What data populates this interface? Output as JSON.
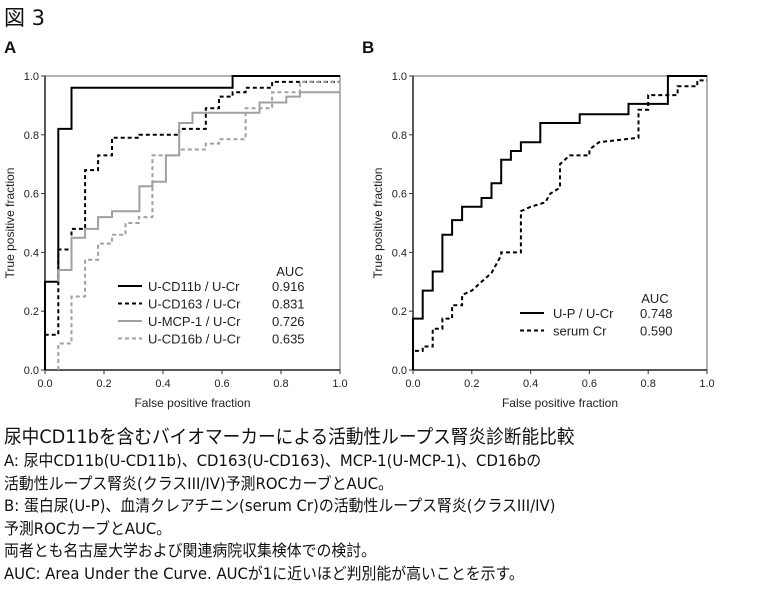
{
  "figure_label": "図 3",
  "chart_data": [
    {
      "panel": "A",
      "type": "line",
      "xlabel": "False positive fraction",
      "ylabel": "True positive fraction",
      "xlim": [
        0,
        1
      ],
      "ylim": [
        0,
        1
      ],
      "xticks": [
        "0.0",
        "0.2",
        "0.4",
        "0.6",
        "0.8",
        "1.0"
      ],
      "yticks": [
        "0.0",
        "0.2",
        "0.4",
        "0.6",
        "0.8",
        "1.0"
      ],
      "legend_title": "AUC",
      "legend_position": "bottom-right",
      "series": [
        {
          "name": "U-CD11b / U-Cr",
          "auc": "0.916",
          "color": "#000000",
          "dash": false,
          "points": [
            [
              0,
              0
            ],
            [
              0,
              0.3
            ],
            [
              0.045,
              0.3
            ],
            [
              0.045,
              0.82
            ],
            [
              0.09,
              0.82
            ],
            [
              0.09,
              0.96
            ],
            [
              0.636,
              0.96
            ],
            [
              0.636,
              1
            ],
            [
              1,
              1
            ]
          ]
        },
        {
          "name": "U-CD163 / U-Cr",
          "auc": "0.831",
          "color": "#000000",
          "dash": true,
          "points": [
            [
              0,
              0
            ],
            [
              0,
              0.12
            ],
            [
              0.045,
              0.12
            ],
            [
              0.045,
              0.41
            ],
            [
              0.09,
              0.41
            ],
            [
              0.09,
              0.48
            ],
            [
              0.136,
              0.48
            ],
            [
              0.136,
              0.68
            ],
            [
              0.18,
              0.68
            ],
            [
              0.18,
              0.73
            ],
            [
              0.227,
              0.73
            ],
            [
              0.227,
              0.79
            ],
            [
              0.32,
              0.79
            ],
            [
              0.32,
              0.8
            ],
            [
              0.455,
              0.8
            ],
            [
              0.455,
              0.82
            ],
            [
              0.545,
              0.82
            ],
            [
              0.545,
              0.89
            ],
            [
              0.59,
              0.89
            ],
            [
              0.59,
              0.93
            ],
            [
              0.636,
              0.93
            ],
            [
              0.636,
              0.945
            ],
            [
              0.68,
              0.945
            ],
            [
              0.68,
              0.96
            ],
            [
              0.77,
              0.96
            ],
            [
              0.77,
              0.98
            ],
            [
              1,
              0.98
            ]
          ]
        },
        {
          "name": "U-MCP-1 / U-Cr",
          "auc": "0.726",
          "color": "#a0a0a0",
          "dash": false,
          "points": [
            [
              0.045,
              0.3
            ],
            [
              0.045,
              0.34
            ],
            [
              0.09,
              0.34
            ],
            [
              0.09,
              0.45
            ],
            [
              0.136,
              0.45
            ],
            [
              0.136,
              0.48
            ],
            [
              0.18,
              0.48
            ],
            [
              0.18,
              0.52
            ],
            [
              0.227,
              0.52
            ],
            [
              0.227,
              0.54
            ],
            [
              0.32,
              0.54
            ],
            [
              0.32,
              0.625
            ],
            [
              0.364,
              0.625
            ],
            [
              0.364,
              0.64
            ],
            [
              0.41,
              0.64
            ],
            [
              0.41,
              0.73
            ],
            [
              0.455,
              0.73
            ],
            [
              0.455,
              0.84
            ],
            [
              0.5,
              0.84
            ],
            [
              0.5,
              0.875
            ],
            [
              0.727,
              0.875
            ],
            [
              0.727,
              0.91
            ],
            [
              0.818,
              0.91
            ],
            [
              0.818,
              0.93
            ],
            [
              0.864,
              0.93
            ],
            [
              0.864,
              0.945
            ],
            [
              1,
              0.945
            ]
          ]
        },
        {
          "name": "U-CD16b / U-Cr",
          "auc": "0.635",
          "color": "#a0a0a0",
          "dash": true,
          "points": [
            [
              0.045,
              0
            ],
            [
              0.045,
              0.09
            ],
            [
              0.09,
              0.09
            ],
            [
              0.09,
              0.25
            ],
            [
              0.136,
              0.25
            ],
            [
              0.136,
              0.375
            ],
            [
              0.18,
              0.375
            ],
            [
              0.18,
              0.43
            ],
            [
              0.227,
              0.43
            ],
            [
              0.227,
              0.46
            ],
            [
              0.273,
              0.46
            ],
            [
              0.273,
              0.5
            ],
            [
              0.318,
              0.5
            ],
            [
              0.318,
              0.52
            ],
            [
              0.364,
              0.52
            ],
            [
              0.364,
              0.73
            ],
            [
              0.455,
              0.73
            ],
            [
              0.455,
              0.75
            ],
            [
              0.545,
              0.75
            ],
            [
              0.545,
              0.77
            ],
            [
              0.59,
              0.77
            ],
            [
              0.59,
              0.785
            ],
            [
              0.68,
              0.785
            ],
            [
              0.68,
              0.89
            ],
            [
              0.77,
              0.89
            ],
            [
              0.77,
              0.945
            ],
            [
              0.864,
              0.945
            ],
            [
              0.864,
              0.98
            ],
            [
              1,
              0.98
            ]
          ]
        }
      ]
    },
    {
      "panel": "B",
      "type": "line",
      "xlabel": "False positive fraction",
      "ylabel": "True positive fraction",
      "xlim": [
        0,
        1
      ],
      "ylim": [
        0,
        1
      ],
      "xticks": [
        "0.0",
        "0.2",
        "0.4",
        "0.6",
        "0.8",
        "1.0"
      ],
      "yticks": [
        "0.0",
        "0.2",
        "0.4",
        "0.6",
        "0.8",
        "1.0"
      ],
      "legend_title": "AUC",
      "legend_position": "bottom-right",
      "series": [
        {
          "name": "U-P / U-Cr",
          "auc": "0.748",
          "color": "#000000",
          "dash": false,
          "points": [
            [
              0,
              0
            ],
            [
              0,
              0.175
            ],
            [
              0.033,
              0.175
            ],
            [
              0.033,
              0.27
            ],
            [
              0.067,
              0.27
            ],
            [
              0.067,
              0.335
            ],
            [
              0.1,
              0.335
            ],
            [
              0.1,
              0.46
            ],
            [
              0.133,
              0.46
            ],
            [
              0.133,
              0.51
            ],
            [
              0.167,
              0.51
            ],
            [
              0.167,
              0.555
            ],
            [
              0.233,
              0.555
            ],
            [
              0.233,
              0.585
            ],
            [
              0.267,
              0.585
            ],
            [
              0.267,
              0.635
            ],
            [
              0.3,
              0.635
            ],
            [
              0.3,
              0.715
            ],
            [
              0.333,
              0.715
            ],
            [
              0.333,
              0.745
            ],
            [
              0.367,
              0.745
            ],
            [
              0.367,
              0.775
            ],
            [
              0.433,
              0.775
            ],
            [
              0.433,
              0.84
            ],
            [
              0.567,
              0.84
            ],
            [
              0.567,
              0.87
            ],
            [
              0.733,
              0.87
            ],
            [
              0.733,
              0.905
            ],
            [
              0.867,
              0.905
            ],
            [
              0.867,
              1
            ],
            [
              1,
              1
            ]
          ]
        },
        {
          "name": "serum Cr",
          "auc": "0.590",
          "color": "#000000",
          "dash": true,
          "points": [
            [
              0,
              0
            ],
            [
              0,
              0.065
            ],
            [
              0.033,
              0.065
            ],
            [
              0.033,
              0.08
            ],
            [
              0.067,
              0.08
            ],
            [
              0.067,
              0.14
            ],
            [
              0.1,
              0.14
            ],
            [
              0.1,
              0.175
            ],
            [
              0.133,
              0.175
            ],
            [
              0.133,
              0.22
            ],
            [
              0.167,
              0.22
            ],
            [
              0.167,
              0.255
            ],
            [
              0.2,
              0.27
            ],
            [
              0.233,
              0.3
            ],
            [
              0.267,
              0.33
            ],
            [
              0.3,
              0.39
            ],
            [
              0.3,
              0.4
            ],
            [
              0.367,
              0.4
            ],
            [
              0.367,
              0.54
            ],
            [
              0.4,
              0.555
            ],
            [
              0.45,
              0.57
            ],
            [
              0.467,
              0.6
            ],
            [
              0.5,
              0.62
            ],
            [
              0.5,
              0.7
            ],
            [
              0.533,
              0.73
            ],
            [
              0.6,
              0.73
            ],
            [
              0.6,
              0.75
            ],
            [
              0.633,
              0.775
            ],
            [
              0.767,
              0.79
            ],
            [
              0.767,
              0.885
            ],
            [
              0.8,
              0.885
            ],
            [
              0.8,
              0.935
            ],
            [
              0.9,
              0.935
            ],
            [
              0.9,
              0.965
            ],
            [
              0.967,
              0.965
            ],
            [
              0.967,
              0.985
            ],
            [
              1,
              0.985
            ]
          ]
        }
      ]
    }
  ],
  "caption": {
    "title": "尿中CD11bを含むバイオマーカーによる活動性ループス腎炎診断能比較",
    "lines": [
      "A: 尿中CD11b(U-CD11b)、CD163(U-CD163)、MCP-1(U-MCP-1)、CD16bの",
      "活動性ループス腎炎(クラスIII/IV)予測ROCカーブとAUC。",
      "B: 蛋白尿(U-P)、血清クレアチニン(serum Cr)の活動性ループス腎炎(クラスIII/IV)",
      "予測ROCカーブとAUC。",
      "両者とも名古屋大学および関連病院収集検体での検討。",
      "AUC: Area Under the Curve. AUCが1に近いほど判別能が高いことを示す。"
    ]
  }
}
